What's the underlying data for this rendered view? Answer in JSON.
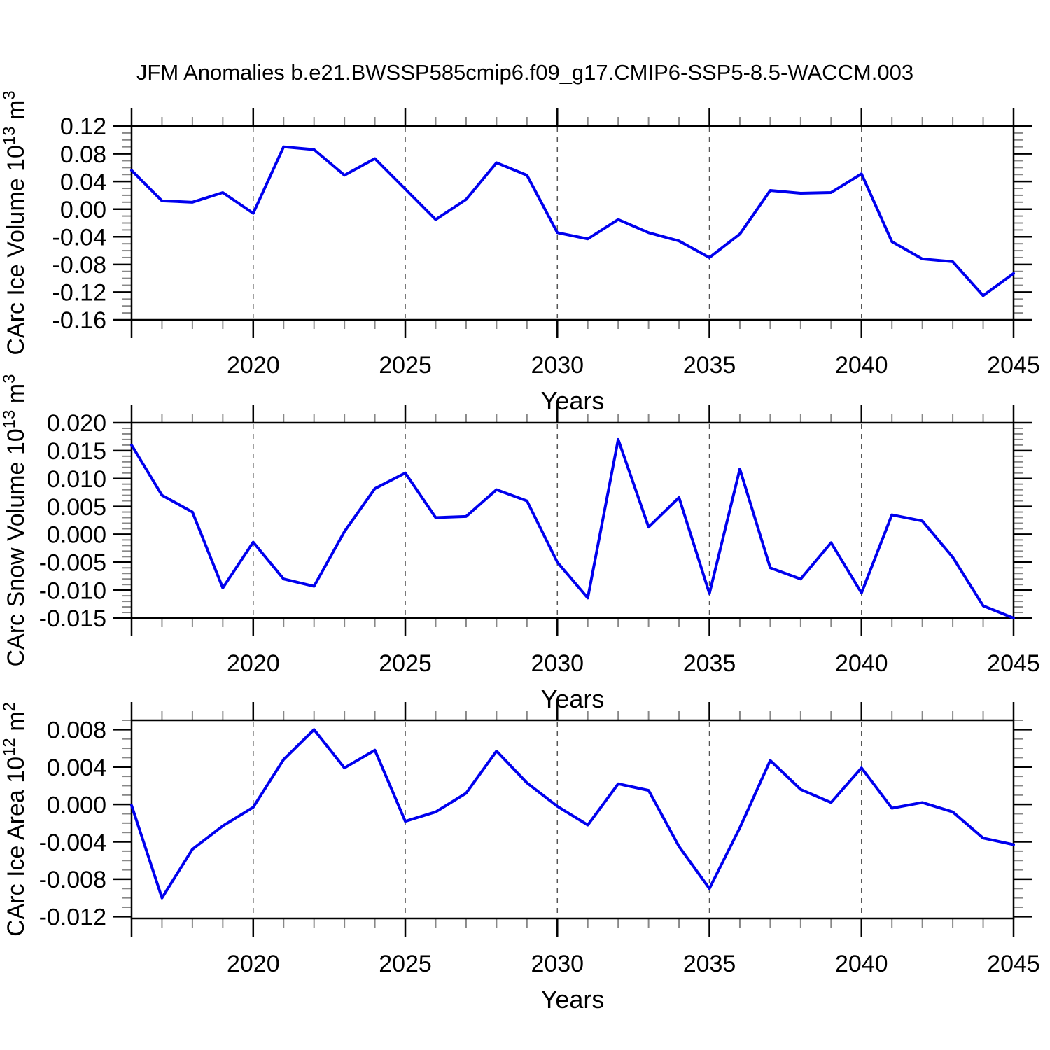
{
  "title": "JFM Anomalies b.e21.BWSSP585cmip6.f09_g17.CMIP6-SSP5-8.5-WACCM.003",
  "figure": {
    "background": "#ffffff",
    "line_color": "#0000ee",
    "frame_color": "#000000",
    "major_tick_color": "#000000",
    "minor_tick_color": "#888888",
    "grid_color": "#555555",
    "text_color": "#000000"
  },
  "x_axis": {
    "label": "Years",
    "range": [
      2016,
      2045
    ],
    "major_tick_years": [
      2016,
      2020,
      2025,
      2030,
      2035,
      2040,
      2045
    ],
    "labeled_years": [
      2020,
      2025,
      2030,
      2035,
      2040,
      2045
    ],
    "minor_step_years": 1,
    "grid_years": [
      2020,
      2025,
      2030,
      2035,
      2040
    ]
  },
  "chart_data": [
    {
      "type": "line",
      "name": "carc-ice-volume",
      "ylabel_text": "CArc Ice Volume 10^13 m^3",
      "ylabel_parts": [
        {
          "text": "CArc Ice Volume 10"
        },
        {
          "text": "13",
          "sup": true
        },
        {
          "text": " m"
        },
        {
          "text": "3",
          "sup": true
        }
      ],
      "xlabel": "Years",
      "ylim": [
        -0.16,
        0.12
      ],
      "ytick_values": [
        0.12,
        0.08,
        0.04,
        0.0,
        -0.04,
        -0.08,
        -0.12,
        -0.16
      ],
      "ytick_labels": [
        "0.12",
        "0.08",
        "0.04",
        "0.00",
        "-0.04",
        "-0.08",
        "-0.12",
        "-0.16"
      ],
      "y_minor_step": 0.01,
      "x": [
        2016,
        2017,
        2018,
        2019,
        2020,
        2021,
        2022,
        2023,
        2024,
        2025,
        2026,
        2027,
        2028,
        2029,
        2030,
        2031,
        2032,
        2033,
        2034,
        2035,
        2036,
        2037,
        2038,
        2039,
        2040,
        2041,
        2042,
        2043,
        2044,
        2045
      ],
      "values": [
        0.056,
        0.012,
        0.01,
        0.024,
        -0.006,
        0.09,
        0.086,
        0.049,
        0.073,
        0.029,
        -0.015,
        0.014,
        0.067,
        0.049,
        -0.034,
        -0.043,
        -0.015,
        -0.034,
        -0.046,
        -0.07,
        -0.036,
        0.027,
        0.023,
        0.024,
        0.051,
        -0.047,
        -0.072,
        -0.076,
        -0.125,
        -0.093
      ]
    },
    {
      "type": "line",
      "name": "carc-snow-volume",
      "ylabel_text": "CArc Snow Volume 10^13 m^3",
      "ylabel_parts": [
        {
          "text": "CArc Snow Volume 10"
        },
        {
          "text": "13",
          "sup": true
        },
        {
          "text": " m"
        },
        {
          "text": "3",
          "sup": true
        }
      ],
      "xlabel": "Years",
      "ylim": [
        -0.015,
        0.02
      ],
      "ytick_values": [
        0.02,
        0.015,
        0.01,
        0.005,
        0.0,
        -0.005,
        -0.01,
        -0.015
      ],
      "ytick_labels": [
        "0.020",
        "0.015",
        "0.010",
        "0.005",
        "0.000",
        "-0.005",
        "-0.010",
        "-0.015"
      ],
      "y_minor_step": 0.001,
      "x": [
        2016,
        2017,
        2018,
        2019,
        2020,
        2021,
        2022,
        2023,
        2024,
        2025,
        2026,
        2027,
        2028,
        2029,
        2030,
        2031,
        2032,
        2033,
        2034,
        2035,
        2036,
        2037,
        2038,
        2039,
        2040,
        2041,
        2042,
        2043,
        2044,
        2045
      ],
      "values": [
        0.016,
        0.007,
        0.004,
        -0.0096,
        -0.0014,
        -0.008,
        -0.0093,
        0.0005,
        0.0082,
        0.011,
        0.003,
        0.0032,
        0.008,
        0.006,
        -0.005,
        -0.0114,
        0.017,
        0.0013,
        0.0066,
        -0.0106,
        0.0117,
        -0.006,
        -0.008,
        -0.0015,
        -0.0105,
        0.0035,
        0.0024,
        -0.0041,
        -0.0128,
        -0.015
      ]
    },
    {
      "type": "line",
      "name": "carc-ice-area",
      "ylabel_text": "CArc Ice Area 10^12 m^2",
      "ylabel_parts": [
        {
          "text": "CArc Ice Area 10"
        },
        {
          "text": "12",
          "sup": true
        },
        {
          "text": " m"
        },
        {
          "text": "2",
          "sup": true
        }
      ],
      "xlabel": "Years",
      "ylim": [
        -0.0122,
        0.009
      ],
      "ytick_values": [
        0.008,
        0.004,
        0.0,
        -0.004,
        -0.008,
        -0.012
      ],
      "ytick_labels": [
        "0.008",
        "0.004",
        "0.000",
        "-0.004",
        "-0.008",
        "-0.012"
      ],
      "y_minor_step": 0.001,
      "x": [
        2016,
        2017,
        2018,
        2019,
        2020,
        2021,
        2022,
        2023,
        2024,
        2025,
        2026,
        2027,
        2028,
        2029,
        2030,
        2031,
        2032,
        2033,
        2034,
        2035,
        2036,
        2037,
        2038,
        2039,
        2040,
        2041,
        2042,
        2043,
        2044,
        2045
      ],
      "values": [
        -0.0001,
        -0.01,
        -0.0048,
        -0.0023,
        -0.0003,
        0.0048,
        0.008,
        0.0039,
        0.0058,
        -0.0018,
        -0.0008,
        0.0012,
        0.0057,
        0.0023,
        -0.0002,
        -0.0022,
        0.0022,
        0.0015,
        -0.0045,
        -0.009,
        -0.0025,
        0.0047,
        0.0016,
        0.0002,
        0.0039,
        -0.0004,
        0.0002,
        -0.0008,
        -0.0036,
        -0.0043
      ]
    }
  ]
}
